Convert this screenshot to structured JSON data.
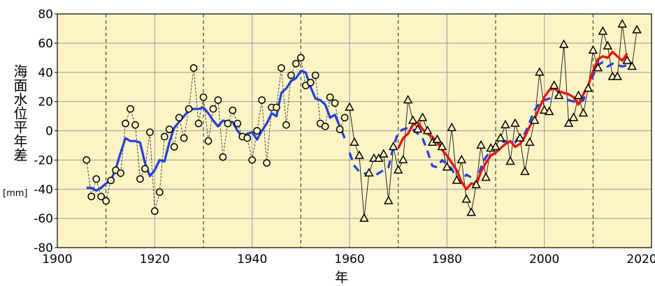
{
  "chart_data": {
    "type": "line",
    "title": "",
    "ylabel": "海面水位平年差",
    "yunit": "[mm]",
    "xlabel": "年",
    "xlim": [
      1900,
      2022
    ],
    "ylim": [
      -80,
      80
    ],
    "xticks": [
      1900,
      1920,
      1940,
      1960,
      1980,
      2000,
      2020
    ],
    "yticks": [
      80,
      60,
      40,
      20,
      0,
      -20,
      -40,
      -60,
      -80
    ],
    "dashed_vlines": [
      1910,
      1930,
      1950,
      1970,
      1990,
      2010
    ],
    "solid_vlines": [
      1920,
      1940,
      1960,
      1980,
      2000
    ],
    "grid": true,
    "colors": {
      "background": "#fcf4c4",
      "gridline": "#9a9a9a",
      "blue_line": "#1f3fe0",
      "red_line": "#e81414",
      "markers": "#000000"
    },
    "series": [
      {
        "marker": "circle",
        "points": [
          [
            1906,
            -20
          ],
          [
            1907,
            -45
          ],
          [
            1908,
            -33
          ],
          [
            1909,
            -45
          ],
          [
            1910,
            -48
          ],
          [
            1911,
            -34
          ],
          [
            1912,
            -27
          ],
          [
            1913,
            -29
          ],
          [
            1914,
            5
          ],
          [
            1915,
            15
          ],
          [
            1916,
            4
          ],
          [
            1917,
            -33
          ],
          [
            1918,
            -26
          ],
          [
            1919,
            -1
          ],
          [
            1920,
            -55
          ],
          [
            1921,
            -42
          ],
          [
            1922,
            -4
          ],
          [
            1923,
            1
          ],
          [
            1924,
            -11
          ],
          [
            1925,
            9
          ],
          [
            1926,
            -5
          ],
          [
            1927,
            15
          ],
          [
            1928,
            43
          ],
          [
            1929,
            5
          ],
          [
            1930,
            23
          ],
          [
            1931,
            -7
          ],
          [
            1932,
            15
          ],
          [
            1933,
            21
          ],
          [
            1934,
            -18
          ],
          [
            1935,
            5
          ],
          [
            1936,
            14
          ],
          [
            1937,
            5
          ],
          [
            1938,
            -4
          ],
          [
            1939,
            -5
          ],
          [
            1940,
            -20
          ],
          [
            1941,
            0
          ],
          [
            1942,
            21
          ],
          [
            1943,
            -22
          ],
          [
            1944,
            16
          ],
          [
            1945,
            16
          ],
          [
            1946,
            43
          ],
          [
            1947,
            4
          ],
          [
            1948,
            38
          ],
          [
            1949,
            46
          ],
          [
            1950,
            50
          ],
          [
            1951,
            31
          ],
          [
            1952,
            33
          ],
          [
            1953,
            38
          ],
          [
            1954,
            5
          ],
          [
            1955,
            3
          ],
          [
            1956,
            23
          ],
          [
            1957,
            19
          ],
          [
            1958,
            1
          ],
          [
            1959,
            9
          ]
        ]
      },
      {
        "marker": "triangle",
        "points": [
          [
            1960,
            16
          ],
          [
            1961,
            -8
          ],
          [
            1962,
            -17
          ],
          [
            1963,
            -60
          ],
          [
            1964,
            -29
          ],
          [
            1965,
            -19
          ],
          [
            1966,
            -19
          ],
          [
            1967,
            -16
          ],
          [
            1968,
            -48
          ],
          [
            1969,
            -11
          ],
          [
            1970,
            -27
          ],
          [
            1971,
            -20
          ],
          [
            1972,
            21
          ],
          [
            1973,
            7
          ],
          [
            1974,
            1
          ],
          [
            1975,
            9
          ],
          [
            1976,
            0
          ],
          [
            1977,
            -8
          ],
          [
            1978,
            -6
          ],
          [
            1979,
            -11
          ],
          [
            1980,
            -25
          ],
          [
            1981,
            2
          ],
          [
            1982,
            -34
          ],
          [
            1983,
            -20
          ],
          [
            1984,
            -47
          ],
          [
            1985,
            -56
          ],
          [
            1986,
            -37
          ],
          [
            1987,
            -10
          ],
          [
            1988,
            -32
          ],
          [
            1989,
            -12
          ],
          [
            1990,
            -11
          ],
          [
            1991,
            -5
          ],
          [
            1992,
            4
          ],
          [
            1993,
            -21
          ],
          [
            1994,
            5
          ],
          [
            1995,
            -5
          ],
          [
            1996,
            -28
          ],
          [
            1997,
            -8
          ],
          [
            1998,
            7
          ],
          [
            1999,
            40
          ],
          [
            2000,
            14
          ],
          [
            2001,
            13
          ],
          [
            2002,
            31
          ],
          [
            2003,
            24
          ],
          [
            2004,
            59
          ],
          [
            2005,
            5
          ],
          [
            2006,
            9
          ],
          [
            2007,
            24
          ],
          [
            2008,
            12
          ],
          [
            2009,
            29
          ],
          [
            2010,
            55
          ],
          [
            2011,
            43
          ],
          [
            2012,
            68
          ],
          [
            2013,
            58
          ],
          [
            2014,
            37
          ],
          [
            2015,
            37
          ],
          [
            2016,
            73
          ],
          [
            2017,
            48
          ],
          [
            2018,
            44
          ],
          [
            2019,
            69
          ]
        ]
      },
      {
        "line": "solid-blue",
        "points": [
          [
            1906,
            -39
          ],
          [
            1907,
            -39
          ],
          [
            1908,
            -41
          ],
          [
            1909,
            -39
          ],
          [
            1910,
            -36
          ],
          [
            1911,
            -34
          ],
          [
            1912,
            -26
          ],
          [
            1913,
            -15
          ],
          [
            1914,
            -5
          ],
          [
            1915,
            -7
          ],
          [
            1916,
            -7
          ],
          [
            1917,
            -8
          ],
          [
            1918,
            -22
          ],
          [
            1919,
            -31
          ],
          [
            1920,
            -27
          ],
          [
            1921,
            -20
          ],
          [
            1922,
            -21
          ],
          [
            1923,
            -8
          ],
          [
            1924,
            2
          ],
          [
            1925,
            6
          ],
          [
            1926,
            10
          ],
          [
            1927,
            14
          ],
          [
            1928,
            15
          ],
          [
            1929,
            15
          ],
          [
            1930,
            16
          ],
          [
            1931,
            12
          ],
          [
            1932,
            7
          ],
          [
            1933,
            3
          ],
          [
            1934,
            7
          ],
          [
            1935,
            6
          ],
          [
            1936,
            6
          ],
          [
            1937,
            0
          ],
          [
            1938,
            -4
          ],
          [
            1939,
            -2
          ],
          [
            1940,
            -1
          ],
          [
            1941,
            -6
          ],
          [
            1942,
            0
          ],
          [
            1943,
            5
          ],
          [
            1944,
            12
          ],
          [
            1945,
            10
          ],
          [
            1946,
            26
          ],
          [
            1947,
            29
          ],
          [
            1948,
            34
          ],
          [
            1949,
            36
          ],
          [
            1950,
            41
          ],
          [
            1951,
            40
          ],
          [
            1952,
            30
          ],
          [
            1953,
            22
          ],
          [
            1954,
            21
          ],
          [
            1955,
            18
          ],
          [
            1956,
            9
          ],
          [
            1957,
            11
          ],
          [
            1958,
            3
          ],
          [
            1959,
            -5
          ]
        ]
      },
      {
        "line": "dashed-blue",
        "points": [
          [
            1960,
            -15
          ],
          [
            1961,
            -24
          ],
          [
            1962,
            -28
          ],
          [
            1963,
            -29
          ],
          [
            1964,
            -30
          ],
          [
            1965,
            -31
          ],
          [
            1966,
            -29
          ],
          [
            1967,
            -27
          ],
          [
            1968,
            -25
          ],
          [
            1969,
            -11
          ],
          [
            1970,
            -1
          ],
          [
            1971,
            1
          ],
          [
            1972,
            2
          ],
          [
            1973,
            1
          ],
          [
            1974,
            -2
          ],
          [
            1975,
            -5
          ],
          [
            1976,
            -14
          ],
          [
            1977,
            -24
          ],
          [
            1978,
            -25
          ],
          [
            1979,
            -20
          ],
          [
            1980,
            -23
          ],
          [
            1981,
            -26
          ],
          [
            1982,
            -33
          ],
          [
            1983,
            -35
          ],
          [
            1984,
            -30
          ],
          [
            1985,
            -32
          ],
          [
            1986,
            -36
          ],
          [
            1987,
            -25
          ],
          [
            1988,
            -18
          ],
          [
            1989,
            -14
          ],
          [
            1990,
            -11
          ],
          [
            1991,
            -8
          ],
          [
            1992,
            -7
          ],
          [
            1993,
            -9
          ],
          [
            1994,
            -8
          ],
          [
            1995,
            -3
          ],
          [
            1996,
            -2
          ],
          [
            1997,
            6
          ],
          [
            1998,
            14
          ],
          [
            1999,
            19
          ],
          [
            2000,
            21
          ],
          [
            2001,
            22
          ],
          [
            2002,
            24
          ],
          [
            2003,
            23
          ],
          [
            2004,
            23
          ],
          [
            2005,
            21
          ],
          [
            2006,
            20
          ],
          [
            2007,
            19
          ],
          [
            2008,
            21
          ],
          [
            2009,
            30
          ],
          [
            2010,
            38
          ],
          [
            2011,
            45
          ],
          [
            2012,
            47
          ],
          [
            2013,
            44
          ],
          [
            2014,
            46
          ],
          [
            2015,
            45
          ],
          [
            2016,
            44
          ],
          [
            2017,
            45
          ]
        ]
      },
      {
        "line": "solid-red",
        "points": [
          [
            1970,
            -12
          ],
          [
            1971,
            -5
          ],
          [
            1972,
            -2
          ],
          [
            1973,
            4
          ],
          [
            1974,
            6
          ],
          [
            1975,
            1
          ],
          [
            1976,
            -2
          ],
          [
            1977,
            -4
          ],
          [
            1978,
            -8
          ],
          [
            1979,
            -13
          ],
          [
            1980,
            -17
          ],
          [
            1981,
            -22
          ],
          [
            1982,
            -27
          ],
          [
            1983,
            -35
          ],
          [
            1984,
            -40
          ],
          [
            1985,
            -36
          ],
          [
            1986,
            -37
          ],
          [
            1987,
            -28
          ],
          [
            1988,
            -22
          ],
          [
            1989,
            -17
          ],
          [
            1990,
            -15
          ],
          [
            1991,
            -12
          ],
          [
            1992,
            -9
          ],
          [
            1993,
            -7
          ],
          [
            1994,
            -11
          ],
          [
            1995,
            -9
          ],
          [
            1996,
            -4
          ],
          [
            1997,
            3
          ],
          [
            1998,
            8
          ],
          [
            1999,
            16
          ],
          [
            2000,
            23
          ],
          [
            2001,
            28
          ],
          [
            2002,
            29
          ],
          [
            2003,
            27
          ],
          [
            2004,
            26
          ],
          [
            2005,
            25
          ],
          [
            2006,
            23
          ],
          [
            2007,
            18
          ],
          [
            2008,
            25
          ],
          [
            2009,
            31
          ],
          [
            2010,
            41
          ],
          [
            2011,
            49
          ],
          [
            2012,
            51
          ],
          [
            2013,
            50
          ],
          [
            2014,
            54
          ],
          [
            2015,
            51
          ],
          [
            2016,
            48
          ],
          [
            2017,
            53
          ]
        ]
      }
    ]
  }
}
